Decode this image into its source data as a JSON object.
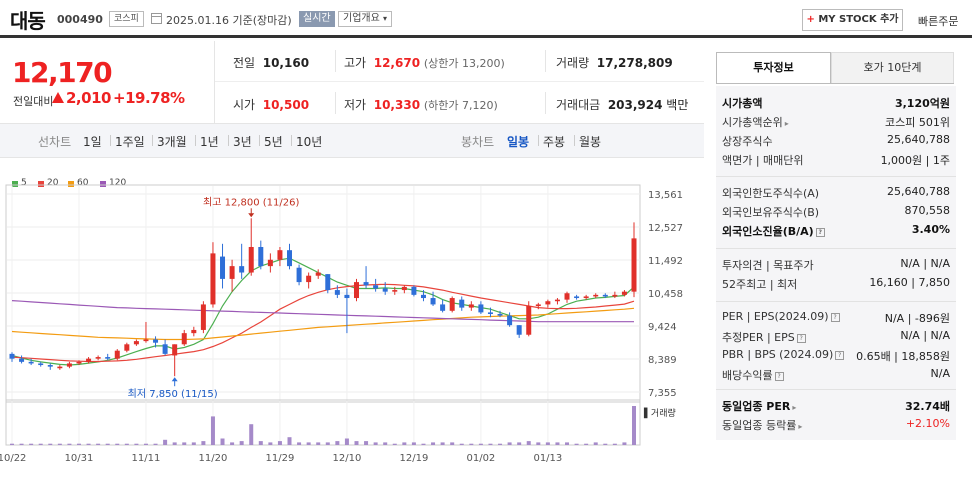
{
  "header": {
    "name": "대동",
    "code": "000490",
    "market": "코스피",
    "date": "2025.01.16 기준(장마감)",
    "live": "실시간",
    "corp_info": "기업개요",
    "mystock": "MY STOCK 추가",
    "quick_order": "빠른주문"
  },
  "price": {
    "current": "12,170",
    "change_label": "전일대비",
    "change": "2,010",
    "change_pct": "+19.78%"
  },
  "quote": {
    "prev_label": "전일",
    "prev": "10,160",
    "high_label": "고가",
    "high": "12,670",
    "upper_limit": "(상한가 13,200)",
    "volume_label": "거래량",
    "volume": "17,278,809",
    "open_label": "시가",
    "open": "10,500",
    "low_label": "저가",
    "low": "10,330",
    "lower_limit": "(하한가 7,120)",
    "amount_label": "거래대금",
    "amount": "203,924",
    "amount_unit": "백만"
  },
  "period_tabs": {
    "label": "선차트",
    "items": [
      "1일",
      "1주일",
      "3개월",
      "1년",
      "3년",
      "5년",
      "10년"
    ]
  },
  "candle_tabs": {
    "label": "봉차트",
    "items": [
      "일봉",
      "주봉",
      "월봉"
    ],
    "active": "일봉"
  },
  "legend": [
    {
      "label": "5",
      "color": "#4caf50"
    },
    {
      "label": "20",
      "color": "#e8453c"
    },
    {
      "label": "60",
      "color": "#f39c12"
    },
    {
      "label": "120",
      "color": "#9b59b6"
    }
  ],
  "chart_data": {
    "type": "candlestick",
    "y_ticks": [
      "13,561",
      "12,527",
      "11,492",
      "10,458",
      "9,424",
      "8,389",
      "7,355"
    ],
    "ylim": [
      7355,
      13561
    ],
    "x_ticks": [
      {
        "label": "10/22",
        "i": 0
      },
      {
        "label": "10/31",
        "i": 7
      },
      {
        "label": "11/11",
        "i": 14
      },
      {
        "label": "11/20",
        "i": 21
      },
      {
        "label": "11/29",
        "i": 28
      },
      {
        "label": "12/10",
        "i": 35
      },
      {
        "label": "12/19",
        "i": 42
      },
      {
        "label": "01/02",
        "i": 49
      },
      {
        "label": "01/13",
        "i": 56
      }
    ],
    "max_label": "최고 12,800 (11/26)",
    "min_label": "최저 7,850 (11/15)",
    "volume_label": "거래량",
    "candles": [
      {
        "o": 8550,
        "h": 8600,
        "l": 8300,
        "c": 8400,
        "v": 1
      },
      {
        "o": 8400,
        "h": 8500,
        "l": 8250,
        "c": 8300,
        "v": 1
      },
      {
        "o": 8300,
        "h": 8400,
        "l": 8200,
        "c": 8250,
        "v": 1
      },
      {
        "o": 8250,
        "h": 8300,
        "l": 8150,
        "c": 8200,
        "v": 1
      },
      {
        "o": 8200,
        "h": 8250,
        "l": 8050,
        "c": 8150,
        "v": 1
      },
      {
        "o": 8100,
        "h": 8200,
        "l": 8050,
        "c": 8150,
        "v": 1
      },
      {
        "o": 8150,
        "h": 8300,
        "l": 8100,
        "c": 8250,
        "v": 1
      },
      {
        "o": 8250,
        "h": 8350,
        "l": 8200,
        "c": 8300,
        "v": 1
      },
      {
        "o": 8300,
        "h": 8450,
        "l": 8250,
        "c": 8400,
        "v": 1
      },
      {
        "o": 8400,
        "h": 8500,
        "l": 8350,
        "c": 8450,
        "v": 1
      },
      {
        "o": 8450,
        "h": 8550,
        "l": 8350,
        "c": 8400,
        "v": 1
      },
      {
        "o": 8400,
        "h": 8700,
        "l": 8350,
        "c": 8650,
        "v": 1
      },
      {
        "o": 8650,
        "h": 8900,
        "l": 8600,
        "c": 8850,
        "v": 1
      },
      {
        "o": 8850,
        "h": 9000,
        "l": 8800,
        "c": 8950,
        "v": 1
      },
      {
        "o": 8950,
        "h": 9550,
        "l": 8900,
        "c": 9000,
        "v": 1
      },
      {
        "o": 9000,
        "h": 9100,
        "l": 8750,
        "c": 8900,
        "v": 1
      },
      {
        "o": 8850,
        "h": 9000,
        "l": 8500,
        "c": 8550,
        "v": 4
      },
      {
        "o": 8500,
        "h": 8850,
        "l": 7850,
        "c": 8850,
        "v": 2
      },
      {
        "o": 8850,
        "h": 9300,
        "l": 8800,
        "c": 9200,
        "v": 2
      },
      {
        "o": 9200,
        "h": 9400,
        "l": 9100,
        "c": 9300,
        "v": 2
      },
      {
        "o": 9300,
        "h": 10200,
        "l": 9200,
        "c": 10100,
        "v": 3
      },
      {
        "o": 10100,
        "h": 12050,
        "l": 10000,
        "c": 11700,
        "v": 22
      },
      {
        "o": 11600,
        "h": 12000,
        "l": 10600,
        "c": 10900,
        "v": 5
      },
      {
        "o": 10900,
        "h": 11500,
        "l": 10500,
        "c": 11300,
        "v": 2
      },
      {
        "o": 11300,
        "h": 12000,
        "l": 10900,
        "c": 11100,
        "v": 3
      },
      {
        "o": 11100,
        "h": 12800,
        "l": 11000,
        "c": 11900,
        "v": 16
      },
      {
        "o": 11900,
        "h": 12100,
        "l": 11200,
        "c": 11300,
        "v": 3
      },
      {
        "o": 11300,
        "h": 11700,
        "l": 11100,
        "c": 11500,
        "v": 2
      },
      {
        "o": 11500,
        "h": 11900,
        "l": 11300,
        "c": 11800,
        "v": 3
      },
      {
        "o": 11800,
        "h": 12000,
        "l": 11200,
        "c": 11300,
        "v": 6
      },
      {
        "o": 11250,
        "h": 11350,
        "l": 10700,
        "c": 10800,
        "v": 2
      },
      {
        "o": 10800,
        "h": 11100,
        "l": 10600,
        "c": 11000,
        "v": 2
      },
      {
        "o": 11000,
        "h": 11200,
        "l": 10900,
        "c": 11100,
        "v": 2
      },
      {
        "o": 11050,
        "h": 11050,
        "l": 10450,
        "c": 10550,
        "v": 2
      },
      {
        "o": 10550,
        "h": 10700,
        "l": 10300,
        "c": 10400,
        "v": 3
      },
      {
        "o": 10400,
        "h": 10600,
        "l": 9200,
        "c": 10300,
        "v": 5
      },
      {
        "o": 10300,
        "h": 10900,
        "l": 10200,
        "c": 10800,
        "v": 3
      },
      {
        "o": 10800,
        "h": 11300,
        "l": 10600,
        "c": 10700,
        "v": 3
      },
      {
        "o": 10700,
        "h": 10900,
        "l": 10500,
        "c": 10600,
        "v": 2
      },
      {
        "o": 10600,
        "h": 10800,
        "l": 10400,
        "c": 10500,
        "v": 2
      },
      {
        "o": 10500,
        "h": 10650,
        "l": 10400,
        "c": 10550,
        "v": 1
      },
      {
        "o": 10550,
        "h": 10700,
        "l": 10450,
        "c": 10650,
        "v": 2
      },
      {
        "o": 10650,
        "h": 10700,
        "l": 10350,
        "c": 10400,
        "v": 2
      },
      {
        "o": 10400,
        "h": 10550,
        "l": 10200,
        "c": 10300,
        "v": 1
      },
      {
        "o": 10300,
        "h": 10500,
        "l": 10050,
        "c": 10100,
        "v": 2
      },
      {
        "o": 10100,
        "h": 10250,
        "l": 9850,
        "c": 9900,
        "v": 2
      },
      {
        "o": 9900,
        "h": 10350,
        "l": 9850,
        "c": 10300,
        "v": 2
      },
      {
        "o": 10250,
        "h": 10350,
        "l": 9900,
        "c": 10000,
        "v": 1
      },
      {
        "o": 10000,
        "h": 10200,
        "l": 9900,
        "c": 10100,
        "v": 1
      },
      {
        "o": 10100,
        "h": 10200,
        "l": 9800,
        "c": 9850,
        "v": 1
      },
      {
        "o": 9850,
        "h": 10000,
        "l": 9700,
        "c": 9800,
        "v": 1
      },
      {
        "o": 9800,
        "h": 9900,
        "l": 9700,
        "c": 9750,
        "v": 1
      },
      {
        "o": 9750,
        "h": 9850,
        "l": 9400,
        "c": 9450,
        "v": 2
      },
      {
        "o": 9450,
        "h": 9450,
        "l": 9050,
        "c": 9150,
        "v": 2
      },
      {
        "o": 9150,
        "h": 10200,
        "l": 9100,
        "c": 10050,
        "v": 3
      },
      {
        "o": 10050,
        "h": 10150,
        "l": 9950,
        "c": 10100,
        "v": 2
      },
      {
        "o": 10100,
        "h": 10250,
        "l": 10000,
        "c": 10200,
        "v": 2
      },
      {
        "o": 10200,
        "h": 10300,
        "l": 10100,
        "c": 10250,
        "v": 2
      },
      {
        "o": 10250,
        "h": 10500,
        "l": 10150,
        "c": 10450,
        "v": 2
      },
      {
        "o": 10350,
        "h": 10400,
        "l": 10250,
        "c": 10300,
        "v": 1
      },
      {
        "o": 10300,
        "h": 10400,
        "l": 10250,
        "c": 10350,
        "v": 1
      },
      {
        "o": 10350,
        "h": 10450,
        "l": 10300,
        "c": 10400,
        "v": 2
      },
      {
        "o": 10400,
        "h": 10450,
        "l": 10300,
        "c": 10350,
        "v": 1
      },
      {
        "o": 10350,
        "h": 10500,
        "l": 10300,
        "c": 10400,
        "v": 1
      },
      {
        "o": 10400,
        "h": 10550,
        "l": 10350,
        "c": 10500,
        "v": 2
      },
      {
        "o": 10500,
        "h": 12670,
        "l": 10330,
        "c": 12170,
        "v": 30
      }
    ],
    "ma": {
      "5": [
        8500,
        8420,
        8350,
        8300,
        8260,
        8220,
        8200,
        8220,
        8260,
        8300,
        8350,
        8420,
        8520,
        8620,
        8720,
        8800,
        8800,
        8700,
        8750,
        8850,
        9000,
        9500,
        10050,
        10500,
        10850,
        11150,
        11300,
        11400,
        11500,
        11550,
        11400,
        11250,
        11100,
        10950,
        10800,
        10700,
        10600,
        10600,
        10600,
        10620,
        10600,
        10600,
        10550,
        10500,
        10400,
        10250,
        10150,
        10100,
        10050,
        10000,
        9950,
        9850,
        9750,
        9650,
        9650,
        9700,
        9800,
        9950,
        10100,
        10200,
        10250,
        10300,
        10320,
        10350,
        10380,
        10650
      ],
      "20": [
        8450,
        8430,
        8410,
        8390,
        8370,
        8350,
        8330,
        8320,
        8310,
        8310,
        8320,
        8330,
        8350,
        8380,
        8420,
        8460,
        8500,
        8540,
        8580,
        8620,
        8680,
        8780,
        8900,
        9050,
        9200,
        9380,
        9550,
        9750,
        9950,
        10100,
        10250,
        10380,
        10480,
        10560,
        10620,
        10660,
        10690,
        10710,
        10720,
        10730,
        10720,
        10700,
        10680,
        10650,
        10600,
        10550,
        10480,
        10420,
        10360,
        10300,
        10250,
        10200,
        10150,
        10100,
        10050,
        10000,
        9980,
        9970,
        9970,
        9980,
        10000,
        10020,
        10050,
        10080,
        10110,
        10200
      ],
      "60": [
        9250,
        9230,
        9210,
        9190,
        9170,
        9150,
        9130,
        9110,
        9090,
        9070,
        9060,
        9050,
        9040,
        9030,
        9020,
        9010,
        9000,
        9000,
        9000,
        9010,
        9020,
        9050,
        9080,
        9110,
        9140,
        9170,
        9200,
        9230,
        9260,
        9290,
        9320,
        9350,
        9380,
        9400,
        9420,
        9440,
        9460,
        9480,
        9500,
        9520,
        9540,
        9560,
        9580,
        9600,
        9620,
        9640,
        9660,
        9680,
        9700,
        9710,
        9720,
        9730,
        9740,
        9750,
        9760,
        9770,
        9790,
        9810,
        9830,
        9850,
        9870,
        9890,
        9910,
        9930,
        9950,
        9980
      ],
      "120": [
        10220,
        10200,
        10180,
        10160,
        10140,
        10120,
        10100,
        10080,
        10060,
        10040,
        10020,
        10000,
        9990,
        9980,
        9970,
        9960,
        9950,
        9940,
        9930,
        9920,
        9910,
        9900,
        9890,
        9880,
        9870,
        9860,
        9850,
        9840,
        9830,
        9820,
        9810,
        9800,
        9790,
        9780,
        9770,
        9760,
        9750,
        9740,
        9730,
        9720,
        9710,
        9700,
        9690,
        9680,
        9670,
        9660,
        9650,
        9640,
        9630,
        9620,
        9610,
        9600,
        9590,
        9580,
        9570,
        9560,
        9560,
        9560,
        9560,
        9560,
        9560,
        9560,
        9560,
        9560,
        9560,
        9560
      ]
    }
  },
  "side_tabs": {
    "active": "투자정보",
    "other": "호가 10단계"
  },
  "invest": {
    "g1": [
      {
        "l": "시가총액",
        "v": "3,120억원",
        "bold": true
      },
      {
        "l": "시가총액순위",
        "v": "코스피 501위",
        "caret": true
      },
      {
        "l": "상장주식수",
        "v": "25,640,788"
      },
      {
        "l": "액면가 | 매매단위",
        "v": "1,000원 | 1주"
      }
    ],
    "g2": [
      {
        "l": "외국인한도주식수(A)",
        "v": "25,640,788"
      },
      {
        "l": "외국인보유주식수(B)",
        "v": "870,558"
      },
      {
        "l": "외국인소진율(B/A)",
        "v": "3.40%",
        "bold": true,
        "q": true
      }
    ],
    "g3": [
      {
        "l": "투자의견 | 목표주가",
        "v": "N/A | N/A"
      },
      {
        "l": "52주최고 | 최저",
        "v": "16,160 | 7,850"
      }
    ],
    "g4": [
      {
        "l": "PER | EPS(2024.09)",
        "v": "N/A | -896원",
        "q": true
      },
      {
        "l": "추정PER | EPS",
        "v": "N/A | N/A",
        "q": true
      },
      {
        "l": "PBR | BPS (2024.09)",
        "v": "0.65배 | 18,858원",
        "q": true
      },
      {
        "l": "배당수익률",
        "v": "N/A",
        "q": true
      }
    ],
    "g5": [
      {
        "l": "동일업종 PER",
        "v": "32.74배",
        "bold": true,
        "caret": true
      },
      {
        "l": "동일업종 등락률",
        "v": "+2.10%",
        "red": true,
        "caret": true
      }
    ]
  }
}
